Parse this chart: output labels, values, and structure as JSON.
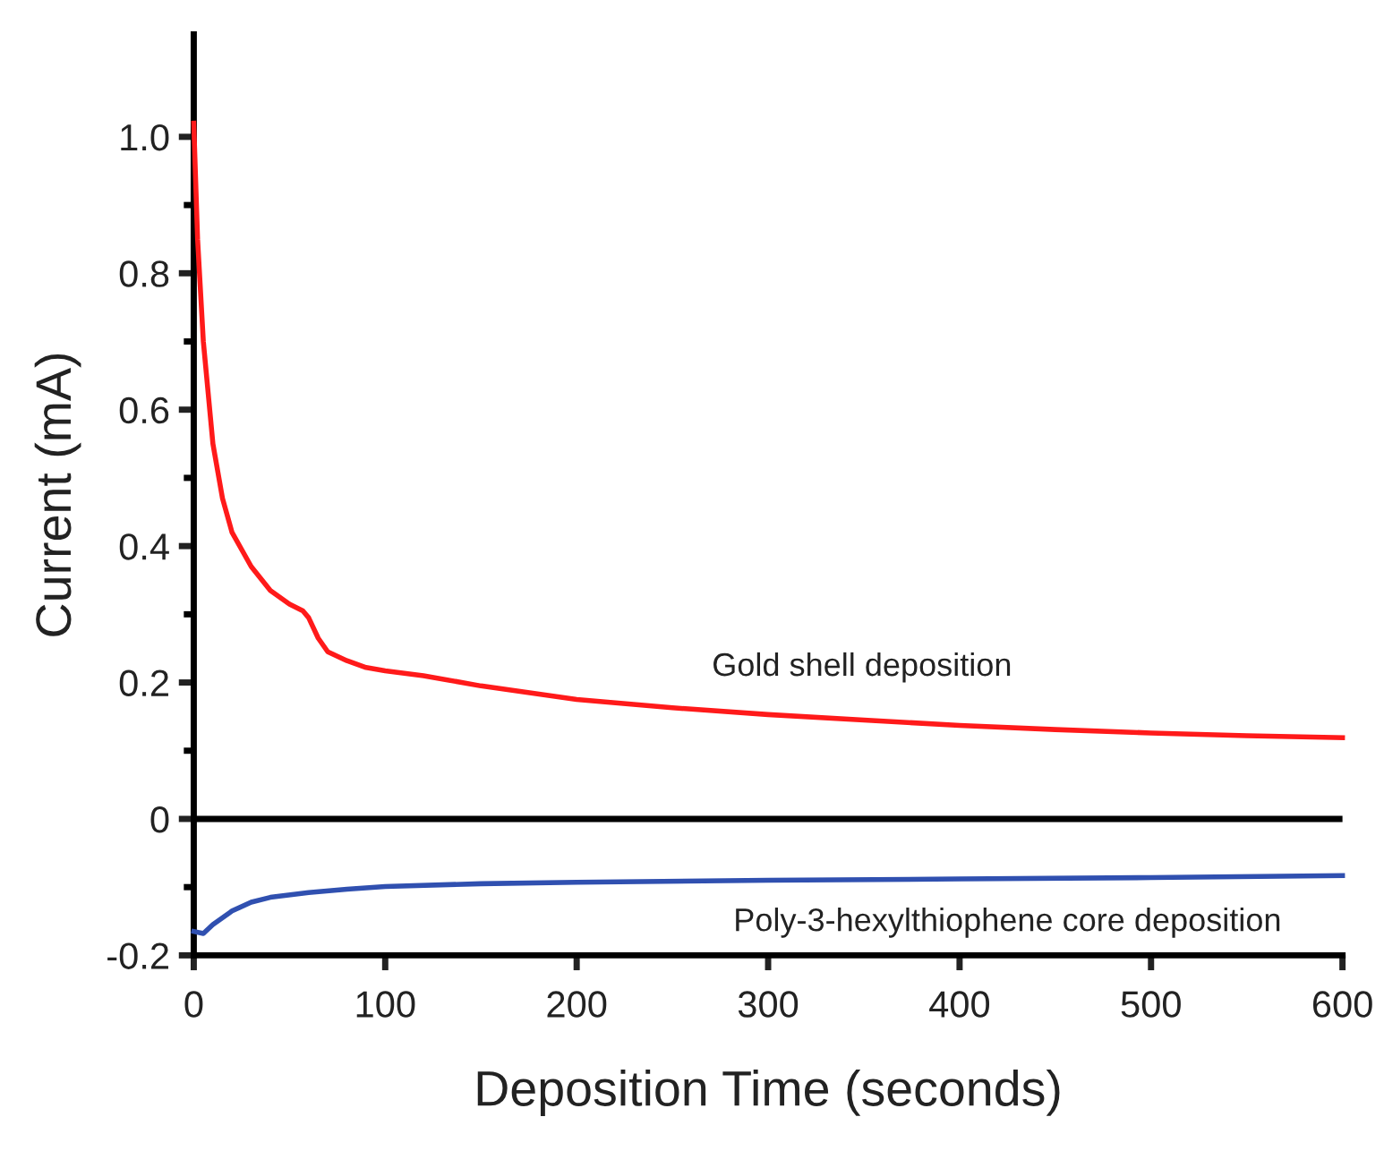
{
  "chart_data": {
    "type": "line",
    "xlabel": "Deposition Time (seconds)",
    "ylabel": "Current (mA)",
    "xlim": [
      0,
      600
    ],
    "xticks": [
      0,
      100,
      200,
      300,
      400,
      500,
      600
    ],
    "ylim": [
      -0.2,
      1.15
    ],
    "yticks": [
      -0.2,
      {
        "value": -0.1,
        "label": null
      },
      0,
      {
        "value": 0.1,
        "label": null
      },
      0.2,
      {
        "value": 0.3,
        "label": null
      },
      0.4,
      {
        "value": 0.5,
        "label": null
      },
      0.6,
      {
        "value": 0.7,
        "label": null
      },
      0.8,
      {
        "value": 0.9,
        "label": null
      },
      {
        "value": 1,
        "label": "1.0"
      }
    ],
    "grid": false,
    "legend": false,
    "marker": "none",
    "line_style": "solid",
    "ref_lines": [
      {
        "axis": "y",
        "value": 0,
        "color": "#000000",
        "line_style": "solid"
      }
    ],
    "series": [
      {
        "name": "Gold shell deposition",
        "color": "#ff1a1a",
        "x": [
          0,
          2,
          5,
          10,
          15,
          20,
          30,
          40,
          50,
          57,
          60,
          65,
          70,
          80,
          90,
          100,
          120,
          150,
          200,
          250,
          300,
          350,
          400,
          450,
          500,
          550,
          600
        ],
        "values": [
          1.02,
          0.85,
          0.7,
          0.55,
          0.47,
          0.42,
          0.37,
          0.335,
          0.315,
          0.305,
          0.295,
          0.265,
          0.245,
          0.232,
          0.222,
          0.217,
          0.21,
          0.195,
          0.175,
          0.163,
          0.153,
          0.145,
          0.137,
          0.131,
          0.126,
          0.122,
          0.119
        ]
      },
      {
        "name": "Poly-3-hexylthiophene core deposition",
        "color": "#3050b0",
        "x": [
          0,
          5,
          10,
          20,
          30,
          40,
          60,
          80,
          100,
          150,
          200,
          300,
          400,
          500,
          600
        ],
        "values": [
          -0.165,
          -0.168,
          -0.155,
          -0.135,
          -0.122,
          -0.115,
          -0.108,
          -0.103,
          -0.099,
          -0.095,
          -0.093,
          -0.09,
          -0.088,
          -0.086,
          -0.083
        ]
      }
    ]
  }
}
